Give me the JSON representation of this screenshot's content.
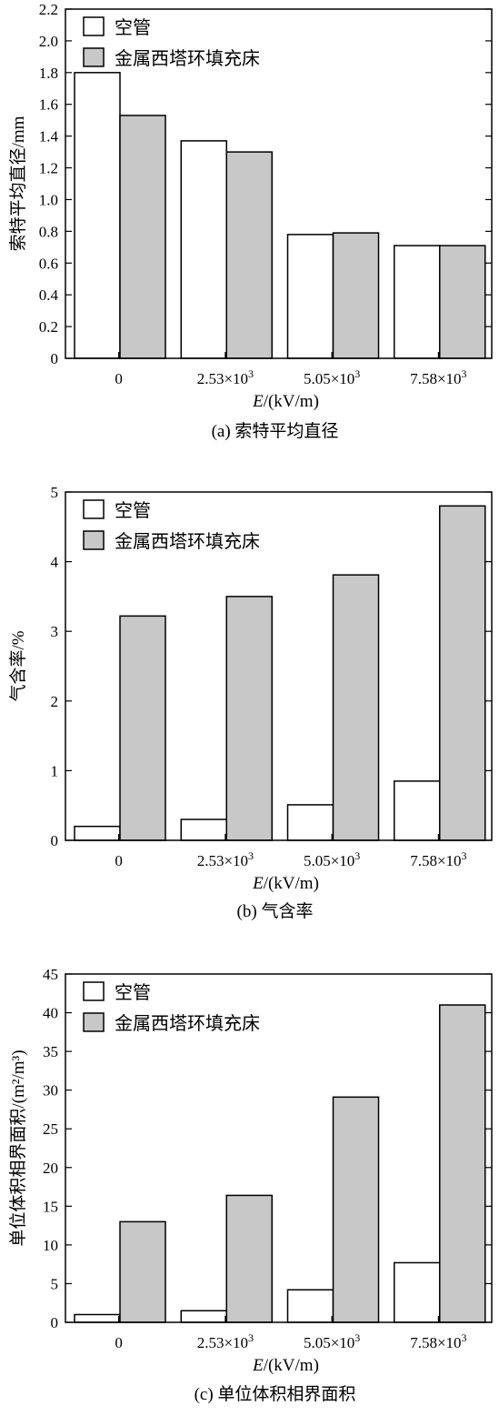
{
  "colors": {
    "empty_tube": "#ffffff",
    "packed_bed": "#c8c8c8",
    "stroke": "#000000"
  },
  "chart_data": [
    {
      "type": "bar",
      "caption": "(a) 索特平均直径",
      "xlabel_italic": "E",
      "xlabel_rest": "/(kV/m)",
      "ylabel": "索特平均直径/mm",
      "categories": [
        {
          "base": "0",
          "exp": ""
        },
        {
          "base": "2.53×10",
          "exp": "3"
        },
        {
          "base": "5.05×10",
          "exp": "3"
        },
        {
          "base": "7.58×10",
          "exp": "3"
        }
      ],
      "ylim": [
        0,
        2.2
      ],
      "yticks": [
        "0",
        "0.2",
        "0.4",
        "0.6",
        "0.8",
        "1.0",
        "1.2",
        "1.4",
        "1.6",
        "1.8",
        "2.0",
        "2.2"
      ],
      "legend_position": "top-left",
      "series": [
        {
          "name": "空管",
          "key": "empty",
          "values": [
            1.8,
            1.37,
            0.78,
            0.71
          ]
        },
        {
          "name": "金属西塔环填充床",
          "key": "packed",
          "values": [
            1.53,
            1.3,
            0.79,
            0.71
          ]
        }
      ]
    },
    {
      "type": "bar",
      "caption": "(b) 气含率",
      "xlabel_italic": "E",
      "xlabel_rest": "/(kV/m)",
      "ylabel": "气含率/%",
      "categories": [
        {
          "base": "0",
          "exp": ""
        },
        {
          "base": "2.53×10",
          "exp": "3"
        },
        {
          "base": "5.05×10",
          "exp": "3"
        },
        {
          "base": "7.58×10",
          "exp": "3"
        }
      ],
      "ylim": [
        0,
        5
      ],
      "yticks": [
        "0",
        "1",
        "2",
        "3",
        "4",
        "5"
      ],
      "legend_position": "top-left",
      "series": [
        {
          "name": "空管",
          "key": "empty",
          "values": [
            0.2,
            0.3,
            0.51,
            0.85
          ]
        },
        {
          "name": "金属西塔环填充床",
          "key": "packed",
          "values": [
            3.22,
            3.5,
            3.81,
            4.8
          ]
        }
      ]
    },
    {
      "type": "bar",
      "caption": "(c) 单位体积相界面积",
      "xlabel_italic": "E",
      "xlabel_rest": "/(kV/m)",
      "ylabel": "单位体积相界面积/(m²/m³)",
      "categories": [
        {
          "base": "0",
          "exp": ""
        },
        {
          "base": "2.53×10",
          "exp": "3"
        },
        {
          "base": "5.05×10",
          "exp": "3"
        },
        {
          "base": "7.58×10",
          "exp": "3"
        }
      ],
      "ylim": [
        0,
        45
      ],
      "yticks": [
        "0",
        "5",
        "10",
        "15",
        "20",
        "25",
        "30",
        "35",
        "40",
        "45"
      ],
      "legend_position": "top-left",
      "series": [
        {
          "name": "空管",
          "key": "empty",
          "values": [
            1.0,
            1.5,
            4.2,
            7.7
          ]
        },
        {
          "name": "金属西塔环填充床",
          "key": "packed",
          "values": [
            13.0,
            16.4,
            29.1,
            41.0
          ]
        }
      ]
    }
  ]
}
